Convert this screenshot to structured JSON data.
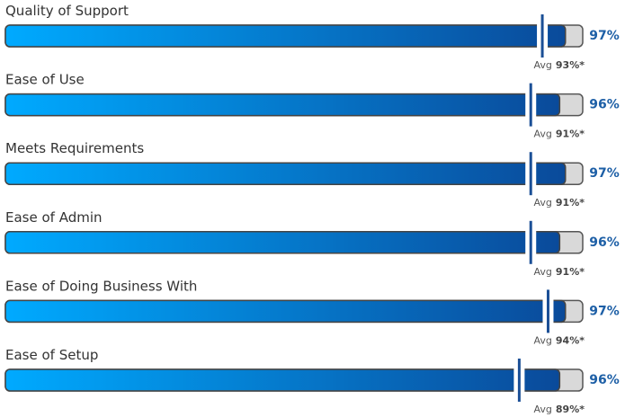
{
  "chart_data": {
    "type": "bar",
    "orientation": "horizontal",
    "categories": [
      "Quality of Support",
      "Ease of Use",
      "Meets Requirements",
      "Ease of Admin",
      "Ease of Doing Business With",
      "Ease of Setup"
    ],
    "values": [
      97,
      96,
      97,
      96,
      97,
      96
    ],
    "value_labels": [
      "97%",
      "96%",
      "97%",
      "96%",
      "97%",
      "96%"
    ],
    "average_prefix": "Avg",
    "averages": [
      93,
      91,
      91,
      91,
      94,
      89
    ],
    "average_labels": [
      "93%*",
      "91%*",
      "91%*",
      "91%*",
      "94%*",
      "89%*"
    ],
    "xlim": [
      0,
      100
    ],
    "color": "#0a4a9a",
    "color_start": "#00aaff",
    "track_color": "#d9d9d9",
    "average_color": "#1b4f96"
  }
}
